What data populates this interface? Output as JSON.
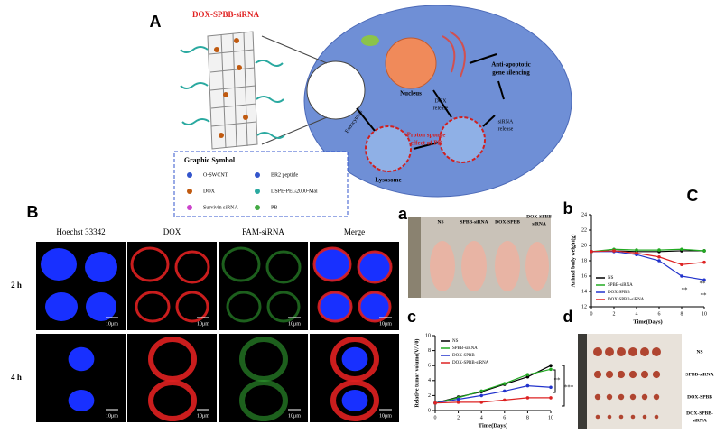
{
  "panel_A": {
    "label": "A",
    "construct_title": "DOX-SPBB-siRNA",
    "labels": {
      "nucleus": "Nucleus",
      "silencing": [
        "Anti-apoptotic",
        "gene silencing"
      ],
      "dox_release": [
        "DOX",
        "release"
      ],
      "sirna_release": [
        "siRNA",
        "release"
      ],
      "endocytosis": "Endocytosis",
      "proton": [
        "Proton sponge",
        "effect of PB"
      ],
      "lysosome": "Lysosome"
    },
    "legend": {
      "title": "Graphic Symbol",
      "items": [
        "O-SWCNT",
        "BR2 peptide",
        "DOX",
        "DSPE-PEG2000-Mal",
        "Survivin siRNA",
        "PB"
      ]
    }
  },
  "panel_B": {
    "label": "B",
    "columns": [
      "Hoechst 33342",
      "DOX",
      "FAM-siRNA",
      "Merge"
    ],
    "rows": [
      "2 h",
      "4 h"
    ],
    "scale_bar": "10μm"
  },
  "panel_a": {
    "label": "a",
    "groups": [
      [
        "NS"
      ],
      [
        "SPBB-siRNA"
      ],
      [
        "DOX-SPBB"
      ],
      [
        "DOX-SPBB",
        "siRNA"
      ]
    ]
  },
  "panel_C": {
    "label": "C"
  },
  "chart_b": {
    "label": "b",
    "type": "line",
    "xlabel": "Time(Days)",
    "ylabel": "Animal body weight(g)",
    "x": [
      0,
      2,
      4,
      6,
      8,
      10
    ],
    "xlim": [
      0,
      10
    ],
    "xticks": [
      0,
      2,
      4,
      6,
      8,
      10
    ],
    "ylim": [
      12,
      24
    ],
    "yticks": [
      12,
      14,
      16,
      18,
      20,
      22,
      24
    ],
    "series": [
      {
        "name": "NS",
        "color": "#000000",
        "values": [
          19.2,
          19.3,
          19.2,
          19.2,
          19.3,
          19.3
        ]
      },
      {
        "name": "SPBB-siRNA",
        "color": "#22aa22",
        "values": [
          19.2,
          19.5,
          19.4,
          19.4,
          19.5,
          19.3
        ]
      },
      {
        "name": "DOX-SPBB",
        "color": "#2233cc",
        "values": [
          19.2,
          19.2,
          18.8,
          18,
          16,
          15.5
        ]
      },
      {
        "name": "DOX-SPBB-siRNA",
        "color": "#dd2222",
        "values": [
          19.2,
          19.3,
          19,
          18.5,
          17.5,
          17.8
        ]
      }
    ],
    "annotations": [
      "**",
      "**",
      "**"
    ]
  },
  "chart_c": {
    "label": "c",
    "type": "line",
    "xlabel": "Time(Days)",
    "ylabel": "Relative tumor volume(V/V0)",
    "x": [
      0,
      2,
      4,
      6,
      8,
      10
    ],
    "xlim": [
      0,
      10
    ],
    "xticks": [
      0,
      2,
      4,
      6,
      8,
      10
    ],
    "ylim": [
      0,
      10
    ],
    "yticks": [
      0,
      2,
      4,
      6,
      8,
      10
    ],
    "series": [
      {
        "name": "NS",
        "color": "#000000",
        "values": [
          1,
          1.8,
          2.5,
          3.5,
          4.5,
          6
        ]
      },
      {
        "name": "SPBB-siRNA",
        "color": "#22aa22",
        "values": [
          1,
          1.7,
          2.6,
          3.6,
          4.8,
          5.5
        ]
      },
      {
        "name": "DOX-SPBB",
        "color": "#2233cc",
        "values": [
          1,
          1.5,
          2,
          2.6,
          3.3,
          3.1
        ]
      },
      {
        "name": "DOX-SPBB-siRNA",
        "color": "#dd2222",
        "values": [
          1,
          1.1,
          1.1,
          1.4,
          1.7,
          1.7
        ]
      }
    ],
    "annotations": [
      "**",
      "***"
    ]
  },
  "panel_d": {
    "label": "d",
    "groups": [
      [
        "NS"
      ],
      [
        "SPBB-siRNA"
      ],
      [
        "DOX-SPBB"
      ],
      [
        "DOX-SPBB-",
        "siRNA"
      ]
    ]
  }
}
